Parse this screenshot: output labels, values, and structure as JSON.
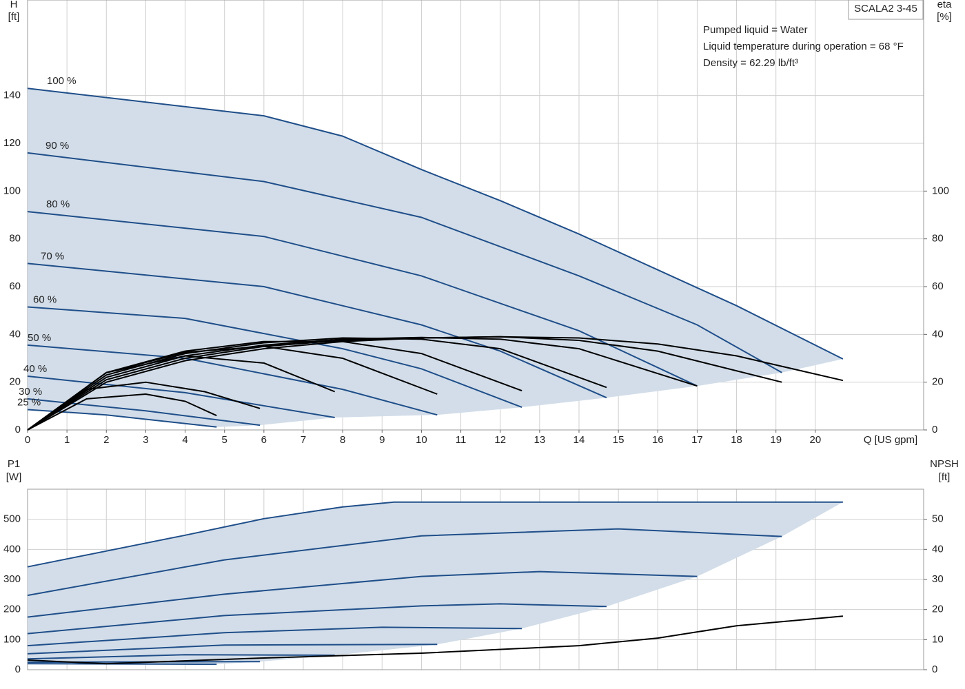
{
  "title": "SCALA2 3-45",
  "annotations": [
    "Pumped liquid = Water",
    "Liquid temperature during operation = 68 °F",
    "Density = 62.29 lb/ft³"
  ],
  "chart_data": [
    {
      "type": "line",
      "x_label": "Q [US gpm]",
      "y_label": "H",
      "y_unit": "[ft]",
      "y2_label": "eta",
      "y2_unit": "[%]",
      "xlim": [
        0,
        22.75
      ],
      "xticks": [
        0,
        1,
        2,
        3,
        4,
        5,
        6,
        7,
        8,
        9,
        10,
        11,
        12,
        13,
        14,
        15,
        16,
        17,
        18,
        19,
        20
      ],
      "ylim": [
        0,
        180
      ],
      "yticks": [
        0,
        20,
        40,
        60,
        80,
        100,
        120,
        140
      ],
      "y2lim": [
        0,
        180
      ],
      "y2ticks": [
        0,
        20,
        40,
        60,
        80,
        100
      ],
      "grid": true,
      "shade": true,
      "series": [
        {
          "name": "100 %",
          "color": "#1f4e89",
          "x": [
            0,
            6,
            8,
            10,
            12,
            14,
            16,
            18,
            20.7
          ],
          "values": [
            143,
            131.5,
            123,
            109,
            96,
            82,
            67,
            52,
            29.7
          ]
        },
        {
          "name": "90 %",
          "color": "#1f4e89",
          "x": [
            0,
            6,
            10,
            14,
            17,
            19.15
          ],
          "values": [
            116,
            104,
            89,
            64.5,
            44,
            24
          ]
        },
        {
          "name": "80 %",
          "color": "#1f4e89",
          "x": [
            0,
            6,
            10,
            14,
            17
          ],
          "values": [
            91.4,
            81,
            64.5,
            41.5,
            18.4
          ]
        },
        {
          "name": "70 %",
          "color": "#1f4e89",
          "x": [
            0,
            6,
            10,
            12,
            14.7
          ],
          "values": [
            69.7,
            60,
            44,
            33,
            13.5
          ]
        },
        {
          "name": "60 %",
          "color": "#1f4e89",
          "x": [
            0,
            4,
            8,
            10,
            12.55
          ],
          "values": [
            51.5,
            46.7,
            34,
            25.6,
            9.5
          ]
        },
        {
          "name": "50 %",
          "color": "#1f4e89",
          "x": [
            0,
            4,
            8,
            10.4
          ],
          "values": [
            35.5,
            30,
            17,
            6.3
          ]
        },
        {
          "name": "40 %",
          "color": "#1f4e89",
          "x": [
            0,
            4,
            7.8
          ],
          "values": [
            22.5,
            15.6,
            5.2
          ]
        },
        {
          "name": "30 %",
          "color": "#1f4e89",
          "x": [
            0,
            3,
            5.9
          ],
          "values": [
            13,
            8,
            2
          ]
        },
        {
          "name": "25 %",
          "color": "#1f4e89",
          "x": [
            0,
            2,
            4.8
          ],
          "values": [
            8.5,
            6.3,
            1.2
          ]
        },
        {
          "color": "#000000",
          "axis": "y2",
          "x": [
            0,
            2,
            4,
            6,
            8,
            10,
            12,
            14,
            16,
            18,
            20.7
          ],
          "values": [
            0,
            20,
            29,
            34,
            37,
            38.5,
            39,
            38.5,
            36,
            31,
            20.7
          ]
        },
        {
          "color": "#000000",
          "axis": "y2",
          "x": [
            0,
            2,
            4,
            6,
            8,
            10,
            12,
            14,
            16,
            19.15
          ],
          "values": [
            0,
            21,
            30,
            35,
            37.5,
            38.5,
            39,
            37.5,
            33,
            20
          ]
        },
        {
          "color": "#000000",
          "axis": "y2",
          "x": [
            0,
            2,
            4,
            6,
            8,
            10,
            12,
            14,
            17
          ],
          "values": [
            0,
            22,
            31,
            35.5,
            38,
            38.7,
            38,
            34,
            18.4
          ]
        },
        {
          "color": "#000000",
          "axis": "y2",
          "x": [
            0,
            2,
            4,
            6,
            8,
            10,
            12,
            14.7
          ],
          "values": [
            0,
            23,
            32,
            36.5,
            38.5,
            38,
            34,
            17.8
          ]
        },
        {
          "color": "#000000",
          "axis": "y2",
          "x": [
            0,
            2,
            4,
            6,
            8,
            10,
            12.55
          ],
          "values": [
            0,
            24,
            33,
            37,
            37,
            32,
            16.4
          ]
        },
        {
          "color": "#000000",
          "axis": "y2",
          "x": [
            0,
            2,
            4,
            6,
            8,
            10.4
          ],
          "values": [
            0,
            24,
            32.5,
            35,
            30,
            15
          ]
        },
        {
          "color": "#000000",
          "axis": "y2",
          "x": [
            0,
            2,
            4,
            6,
            7.8
          ],
          "values": [
            0,
            24,
            31,
            28,
            16
          ]
        },
        {
          "color": "#000000",
          "axis": "y2",
          "x": [
            0,
            1.5,
            3,
            4.5,
            5.9
          ],
          "values": [
            0,
            17,
            20,
            16,
            9
          ]
        },
        {
          "color": "#000000",
          "axis": "y2",
          "x": [
            0,
            1.5,
            3,
            4,
            4.8
          ],
          "values": [
            0,
            13,
            15,
            12,
            6
          ]
        }
      ]
    },
    {
      "type": "line",
      "y_label": "P1",
      "y_unit": "[W]",
      "y2_label": "NPSH",
      "y2_unit": "[ft]",
      "xlim": [
        0,
        22.75
      ],
      "ylim": [
        0,
        600
      ],
      "yticks": [
        0,
        100,
        200,
        300,
        400,
        500
      ],
      "y2lim": [
        0,
        60
      ],
      "y2ticks": [
        0,
        10,
        20,
        30,
        40,
        50
      ],
      "grid": true,
      "shade": true,
      "series": [
        {
          "color": "#1f4e89",
          "x": [
            0,
            4,
            6,
            8,
            9.3,
            20.7
          ],
          "values": [
            342,
            447,
            502,
            541,
            557,
            557
          ]
        },
        {
          "color": "#1f4e89",
          "x": [
            0,
            5,
            10,
            15,
            19.15
          ],
          "values": [
            247,
            365,
            445,
            468,
            443
          ]
        },
        {
          "color": "#1f4e89",
          "x": [
            0,
            5,
            10,
            13,
            17
          ],
          "values": [
            175,
            251,
            310,
            326,
            310
          ]
        },
        {
          "color": "#1f4e89",
          "x": [
            0,
            5,
            10,
            12,
            14.7
          ],
          "values": [
            120,
            180,
            212,
            219,
            210
          ]
        },
        {
          "color": "#1f4e89",
          "x": [
            0,
            5,
            9,
            12.55
          ],
          "values": [
            80,
            123,
            141,
            137
          ]
        },
        {
          "color": "#1f4e89",
          "x": [
            0,
            5,
            10.4
          ],
          "values": [
            53,
            82,
            84
          ]
        },
        {
          "color": "#1f4e89",
          "x": [
            0,
            4,
            7.8
          ],
          "values": [
            36,
            50,
            48
          ]
        },
        {
          "color": "#1f4e89",
          "x": [
            0,
            5.9
          ],
          "values": [
            25,
            27
          ]
        },
        {
          "color": "#1f4e89",
          "x": [
            0,
            4.8
          ],
          "values": [
            20,
            18
          ]
        },
        {
          "color": "#000000",
          "axis": "y2",
          "x": [
            0,
            2,
            6,
            10,
            14,
            16,
            18,
            20.7
          ],
          "values": [
            3.2,
            2,
            3.9,
            5.5,
            8,
            10.5,
            14.6,
            17.8
          ]
        }
      ]
    }
  ]
}
